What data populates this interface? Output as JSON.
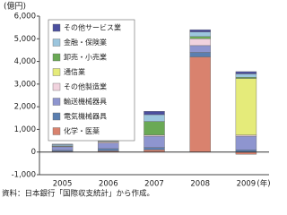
{
  "chart_data": {
    "type": "bar",
    "stacked": true,
    "y_label": "(億円)",
    "x_label": "(年)",
    "source": "資料：日本銀行「国際収支統計」から作成。",
    "categories": [
      "2005",
      "2006",
      "2007",
      "2008",
      "2009"
    ],
    "series": [
      {
        "name": "その他サービス業",
        "color": "#4b4f9e",
        "values": [
          20,
          40,
          150,
          100,
          100
        ]
      },
      {
        "name": "金融・保険業",
        "color": "#9cc6de",
        "values": [
          60,
          80,
          300,
          200,
          150
        ]
      },
      {
        "name": "卸売・小売業",
        "color": "#6aa955",
        "values": [
          20,
          30,
          600,
          100,
          50
        ]
      },
      {
        "name": "通信業",
        "color": "#e5eb7a",
        "values": [
          0,
          0,
          0,
          0,
          2500
        ]
      },
      {
        "name": "その他製造業",
        "color": "#f1d3de",
        "values": [
          20,
          50,
          50,
          300,
          50
        ]
      },
      {
        "name": "輸送機械器具",
        "color": "#8e95cf",
        "values": [
          150,
          250,
          500,
          300,
          600
        ]
      },
      {
        "name": "電気機械器具",
        "color": "#5b7fb0",
        "values": [
          50,
          100,
          100,
          200,
          100
        ]
      },
      {
        "name": "化学・医薬",
        "color": "#d9826e",
        "values": [
          30,
          50,
          100,
          4200,
          -100
        ]
      }
    ],
    "ylim": [
      -1000,
      6000
    ],
    "yticks": [
      {
        "value": -1000,
        "label": "-1,000"
      },
      0,
      {
        "value": 1000,
        "label": "1,000"
      },
      {
        "value": 2000,
        "label": "2,000"
      },
      {
        "value": 3000,
        "label": "3,000"
      },
      {
        "value": 4000,
        "label": "4,000"
      },
      {
        "value": 5000,
        "label": "5,000"
      },
      {
        "value": 6000,
        "label": "6,000"
      }
    ],
    "grid": false
  }
}
